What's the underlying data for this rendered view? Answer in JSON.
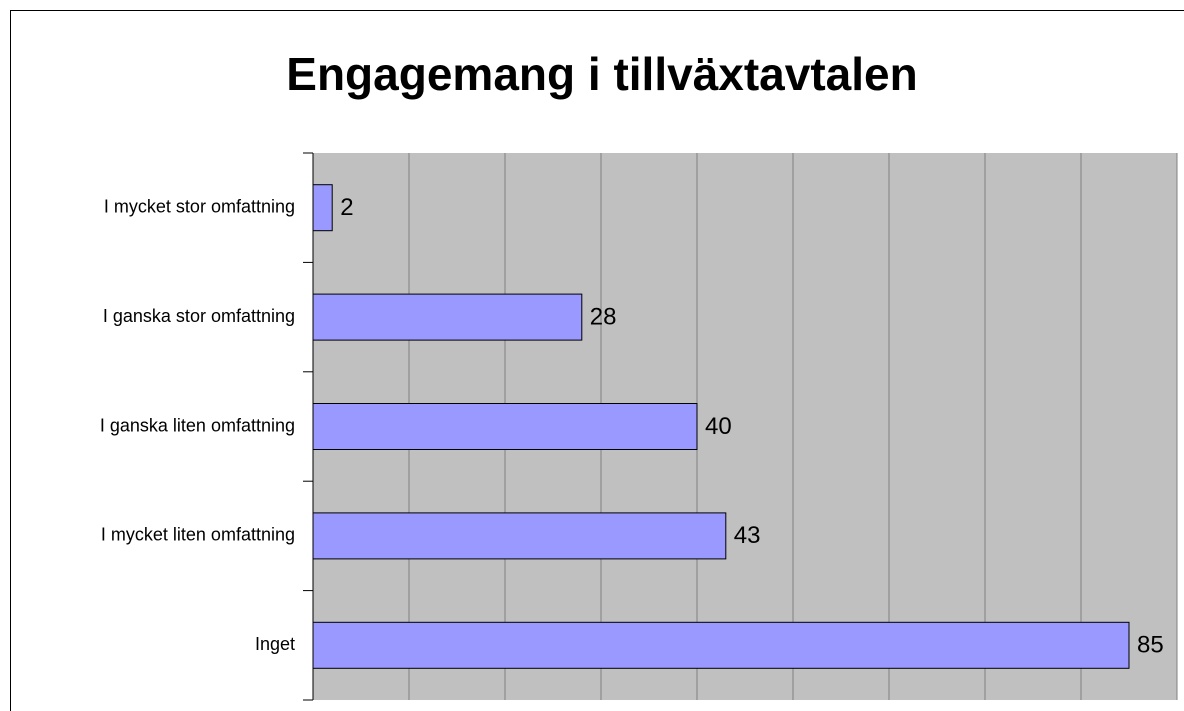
{
  "chart_data": {
    "type": "bar",
    "orientation": "horizontal",
    "title": "Engagemang i tillväxtavtalen",
    "categories": [
      "I mycket stor omfattning",
      "I ganska stor omfattning",
      "I ganska liten omfattning",
      "I mycket liten omfattning",
      "Inget"
    ],
    "values": [
      2,
      28,
      40,
      43,
      85
    ],
    "color": "#9999ff",
    "xlim": [
      0,
      90
    ],
    "xticks": [
      0,
      10,
      20,
      30,
      40,
      50,
      60,
      70,
      80,
      90
    ],
    "grid": true
  }
}
